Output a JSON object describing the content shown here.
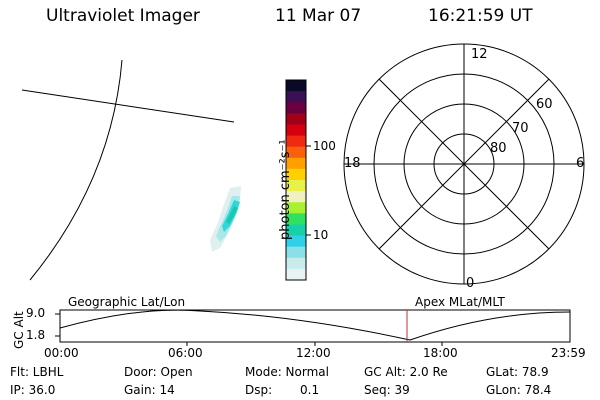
{
  "header": {
    "instrument": "Ultraviolet Imager",
    "date": "11 Mar 07",
    "time": "16:21:59 UT"
  },
  "colorbar": {
    "unit_label": "photon cm⁻²s⁻¹",
    "tick_labels": [
      "100",
      "10"
    ],
    "colors": [
      "#0a0a28",
      "#3a0f55",
      "#6a0040",
      "#a00018",
      "#d40010",
      "#ef2a10",
      "#f8600c",
      "#ffa000",
      "#ffd000",
      "#e8f04a",
      "#f0f0c0",
      "#a8f030",
      "#30e060",
      "#18d0a8",
      "#30d0e8",
      "#8ae0e8",
      "#c8ecec",
      "#e8f4f4"
    ]
  },
  "polar_plot": {
    "mlt_labels": {
      "top": "12",
      "left": "18",
      "right": "6",
      "bottom": "0"
    },
    "lat_labels": [
      "60",
      "70",
      "80"
    ]
  },
  "timeline": {
    "y_axis_label": "GC Alt",
    "y_ticks": [
      "9.0",
      "1.8"
    ],
    "left_title": "Geographic Lat/Lon",
    "right_title": "Apex MLat/MLT",
    "x_ticks": [
      "00:00",
      "06:00",
      "12:00",
      "18:00",
      "23:59"
    ],
    "marker_color": "#c03030"
  },
  "status": {
    "row1": {
      "flt": "Flt: LBHL",
      "door": "Door: Open",
      "mode": "Mode: Normal",
      "gc_alt": "GC Alt: 2.0 Re",
      "glat": "GLat: 78.9"
    },
    "row2": {
      "ip": "IP: 36.0",
      "gain": "Gain: 14",
      "dsp_label": "Dsp:",
      "dsp_value": "0.1",
      "seq": "Seq: 39",
      "glon": "GLon: 78.4"
    }
  }
}
